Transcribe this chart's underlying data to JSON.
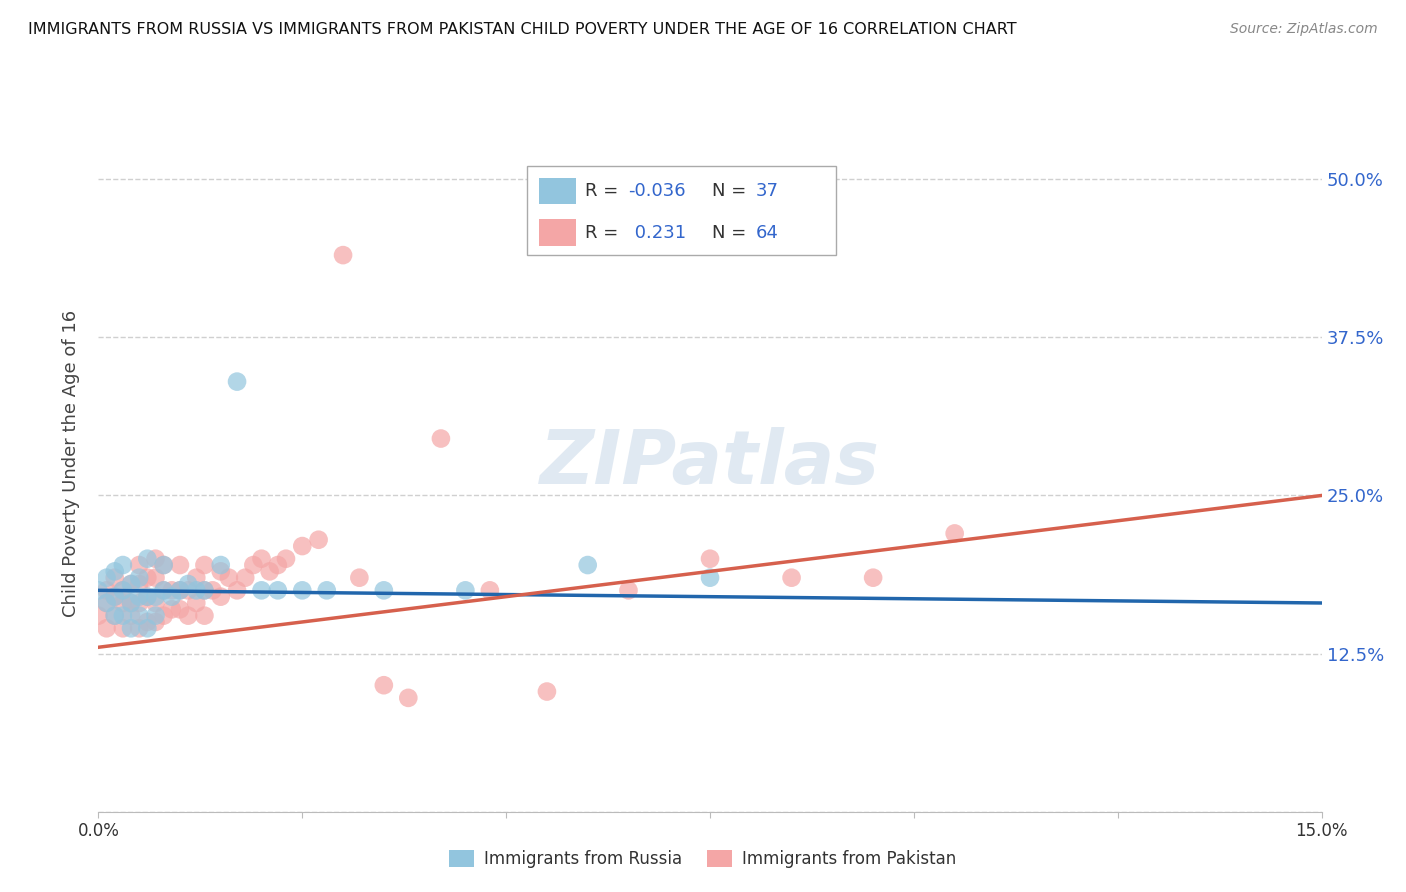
{
  "title": "IMMIGRANTS FROM RUSSIA VS IMMIGRANTS FROM PAKISTAN CHILD POVERTY UNDER THE AGE OF 16 CORRELATION CHART",
  "source": "Source: ZipAtlas.com",
  "ylabel": "Child Poverty Under the Age of 16",
  "xlim": [
    0.0,
    0.15
  ],
  "ylim": [
    0.0,
    0.55
  ],
  "x_ticks": [
    0.0,
    0.025,
    0.05,
    0.075,
    0.1,
    0.125,
    0.15
  ],
  "x_tick_labels": [
    "0.0%",
    "",
    "",
    "",
    "",
    "",
    "15.0%"
  ],
  "y_tick_labels_right": [
    "",
    "12.5%",
    "25.0%",
    "37.5%",
    "50.0%"
  ],
  "y_tick_positions_right": [
    0.0,
    0.125,
    0.25,
    0.375,
    0.5
  ],
  "russia_R": -0.036,
  "russia_N": 37,
  "pakistan_R": 0.231,
  "pakistan_N": 64,
  "russia_color": "#92c5de",
  "pakistan_color": "#f4a6a6",
  "russia_color_line": "#2166ac",
  "pakistan_color_line": "#d6604d",
  "watermark": "ZIPatlas",
  "background_color": "#ffffff",
  "grid_color": "#d0d0d0",
  "russia_scatter_x": [
    0.0,
    0.001,
    0.001,
    0.002,
    0.002,
    0.002,
    0.003,
    0.003,
    0.003,
    0.004,
    0.004,
    0.004,
    0.005,
    0.005,
    0.005,
    0.006,
    0.006,
    0.006,
    0.007,
    0.007,
    0.008,
    0.008,
    0.009,
    0.01,
    0.011,
    0.012,
    0.013,
    0.015,
    0.017,
    0.02,
    0.022,
    0.025,
    0.028,
    0.035,
    0.045,
    0.06,
    0.075
  ],
  "russia_scatter_y": [
    0.175,
    0.165,
    0.185,
    0.155,
    0.17,
    0.19,
    0.155,
    0.175,
    0.195,
    0.145,
    0.165,
    0.18,
    0.155,
    0.17,
    0.185,
    0.145,
    0.17,
    0.2,
    0.155,
    0.17,
    0.175,
    0.195,
    0.17,
    0.175,
    0.18,
    0.175,
    0.175,
    0.195,
    0.34,
    0.175,
    0.175,
    0.175,
    0.175,
    0.175,
    0.175,
    0.195,
    0.185
  ],
  "pakistan_scatter_x": [
    0.0,
    0.001,
    0.001,
    0.001,
    0.002,
    0.002,
    0.002,
    0.003,
    0.003,
    0.003,
    0.004,
    0.004,
    0.004,
    0.005,
    0.005,
    0.005,
    0.005,
    0.006,
    0.006,
    0.006,
    0.007,
    0.007,
    0.007,
    0.007,
    0.008,
    0.008,
    0.008,
    0.009,
    0.009,
    0.01,
    0.01,
    0.01,
    0.011,
    0.011,
    0.012,
    0.012,
    0.013,
    0.013,
    0.013,
    0.014,
    0.015,
    0.015,
    0.016,
    0.017,
    0.018,
    0.019,
    0.02,
    0.021,
    0.022,
    0.023,
    0.025,
    0.027,
    0.03,
    0.032,
    0.035,
    0.038,
    0.042,
    0.048,
    0.055,
    0.065,
    0.075,
    0.085,
    0.095,
    0.105
  ],
  "pakistan_scatter_y": [
    0.155,
    0.165,
    0.145,
    0.175,
    0.155,
    0.17,
    0.185,
    0.145,
    0.165,
    0.175,
    0.155,
    0.165,
    0.18,
    0.145,
    0.165,
    0.18,
    0.195,
    0.15,
    0.17,
    0.185,
    0.15,
    0.165,
    0.185,
    0.2,
    0.155,
    0.175,
    0.195,
    0.16,
    0.175,
    0.16,
    0.175,
    0.195,
    0.155,
    0.175,
    0.165,
    0.185,
    0.155,
    0.175,
    0.195,
    0.175,
    0.17,
    0.19,
    0.185,
    0.175,
    0.185,
    0.195,
    0.2,
    0.19,
    0.195,
    0.2,
    0.21,
    0.215,
    0.44,
    0.185,
    0.1,
    0.09,
    0.295,
    0.175,
    0.095,
    0.175,
    0.2,
    0.185,
    0.185,
    0.22
  ]
}
